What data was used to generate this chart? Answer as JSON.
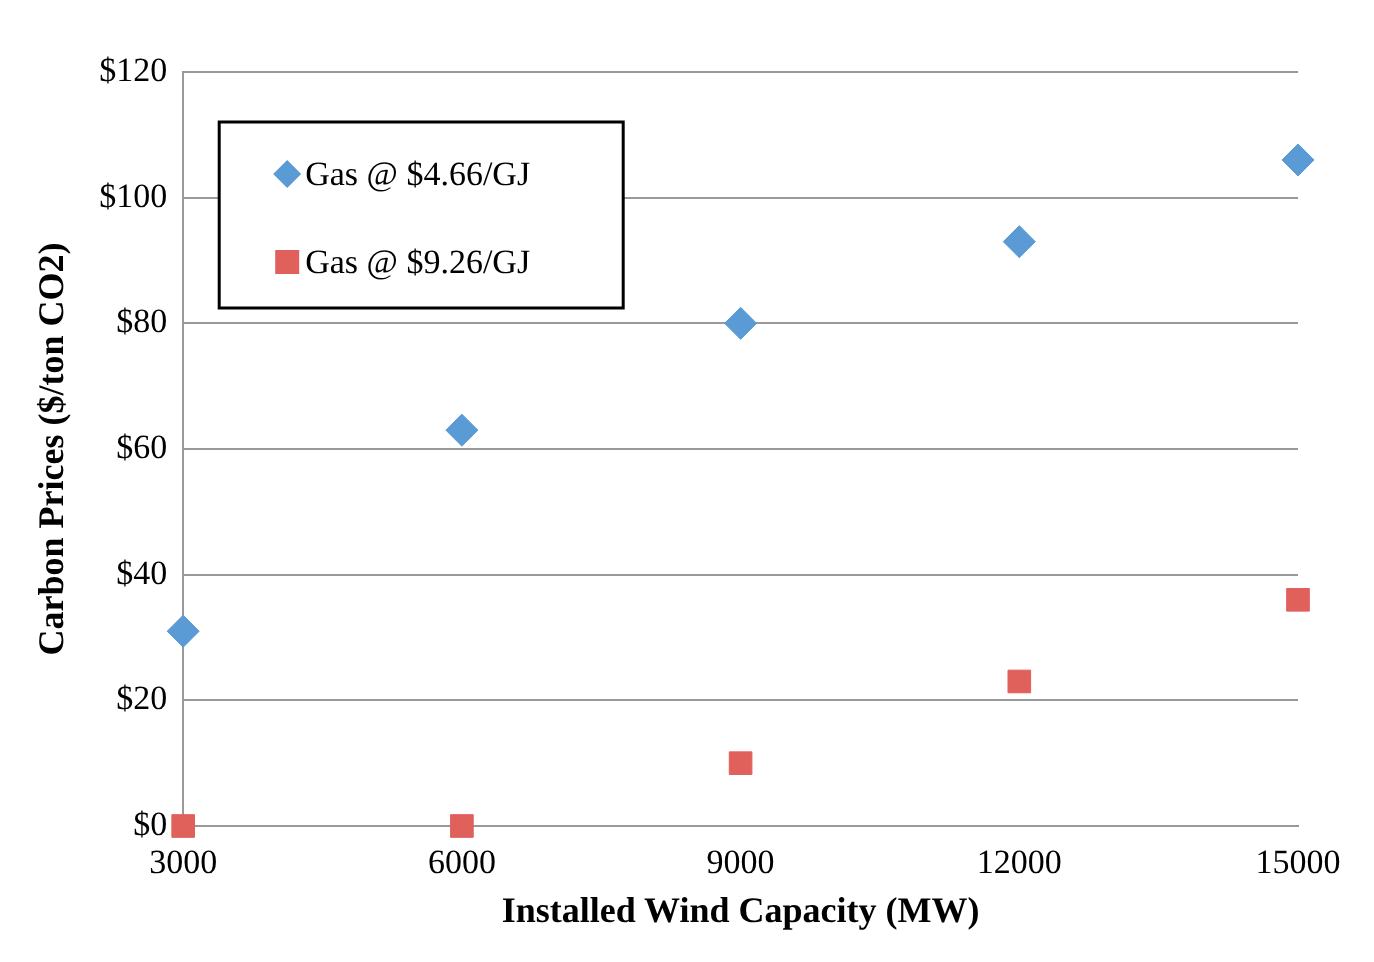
{
  "chart_data": {
    "type": "scatter",
    "xlabel": "Installed Wind Capacity (MW)",
    "ylabel": "Carbon Prices ($/ton CO2)",
    "x": [
      3000,
      6000,
      9000,
      12000,
      15000
    ],
    "series": [
      {
        "name": "Gas @ $4.66/GJ",
        "color": "#5b9bd5",
        "marker": "diamond",
        "values": [
          31,
          63,
          80,
          93,
          106
        ]
      },
      {
        "name": "Gas @ $9.26/GJ",
        "color": "#e0605c",
        "marker": "square",
        "values": [
          0,
          0,
          10,
          23,
          36
        ]
      }
    ],
    "xlim": [
      3000,
      15000
    ],
    "xticks": [
      3000,
      6000,
      9000,
      12000,
      15000
    ],
    "ylim": [
      0,
      120
    ],
    "yticks": [
      {
        "value": 0,
        "label": "$0"
      },
      {
        "value": 20,
        "label": "$20"
      },
      {
        "value": 40,
        "label": "$40"
      },
      {
        "value": 60,
        "label": "$60"
      },
      {
        "value": 80,
        "label": "$80"
      },
      {
        "value": 100,
        "label": "$100"
      },
      {
        "value": 120,
        "label": "$120"
      }
    ],
    "grid": "y",
    "legend": "top left"
  }
}
